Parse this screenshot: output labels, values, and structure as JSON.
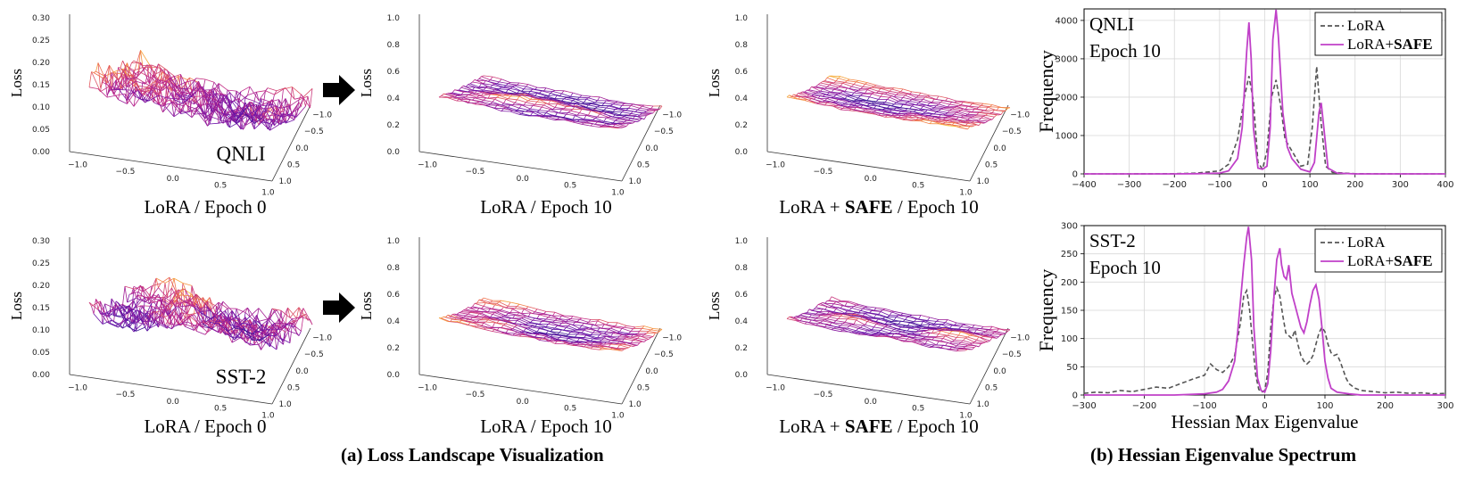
{
  "captions": {
    "left": "(a) Loss Landscape Visualization",
    "right": "(b) Hessian Eigenvalue Spectrum"
  },
  "landscape": {
    "z_label": "Loss",
    "x_ticks": [
      "−1.0",
      "−0.5",
      "0.0",
      "0.5",
      "1.0"
    ],
    "y_ticks": [
      "−1.0",
      "−0.5",
      "0.0",
      "0.5",
      "1.0"
    ],
    "sub_captions": {
      "epoch0": "LoRA / Epoch 0",
      "epoch10": "LoRA / Epoch 10",
      "safe_prefix": "LoRA + ",
      "safe_bold": "SAFE",
      "safe_suffix": " / Epoch 10"
    },
    "panels": [
      {
        "row": 0,
        "col": 0,
        "dataset": "QNLI",
        "z_ticks": [
          "0.00",
          "0.05",
          "0.10",
          "0.15",
          "0.20",
          "0.25",
          "0.30"
        ],
        "zmax": 0.3,
        "seed": 11,
        "amp": 0.55,
        "flat": false
      },
      {
        "row": 0,
        "col": 1,
        "dataset": "",
        "z_ticks": [
          "0.0",
          "0.2",
          "0.4",
          "0.6",
          "0.8",
          "1.0"
        ],
        "zmax": 1.0,
        "seed": 23,
        "amp": 0.14,
        "flat": true
      },
      {
        "row": 0,
        "col": 2,
        "dataset": "",
        "z_ticks": [
          "0.0",
          "0.2",
          "0.4",
          "0.6",
          "0.8",
          "1.0"
        ],
        "zmax": 1.0,
        "seed": 37,
        "amp": 0.12,
        "flat": true
      },
      {
        "row": 1,
        "col": 0,
        "dataset": "SST-2",
        "z_ticks": [
          "0.00",
          "0.05",
          "0.10",
          "0.15",
          "0.20",
          "0.25",
          "0.30"
        ],
        "zmax": 0.3,
        "seed": 51,
        "amp": 0.5,
        "flat": false
      },
      {
        "row": 1,
        "col": 1,
        "dataset": "",
        "z_ticks": [
          "0.0",
          "0.2",
          "0.4",
          "0.6",
          "0.8",
          "1.0"
        ],
        "zmax": 1.0,
        "seed": 67,
        "amp": 0.15,
        "flat": true
      },
      {
        "row": 1,
        "col": 2,
        "dataset": "",
        "z_ticks": [
          "0.0",
          "0.2",
          "0.4",
          "0.6",
          "0.8",
          "1.0"
        ],
        "zmax": 1.0,
        "seed": 79,
        "amp": 0.14,
        "flat": true
      }
    ]
  },
  "chart_data": [
    {
      "type": "line",
      "title": "QNLI Epoch 10",
      "annotation_lines": [
        "QNLI",
        "Epoch 10"
      ],
      "xlabel": "",
      "ylabel": "Frequency",
      "xlim": [
        -400,
        400
      ],
      "ylim": [
        0,
        4300
      ],
      "x_ticks": [
        -400,
        -300,
        -200,
        -100,
        0,
        100,
        200,
        300,
        400
      ],
      "y_ticks": [
        0,
        1000,
        2000,
        3000,
        4000
      ],
      "grid": true,
      "legend_position": "top-right",
      "series": [
        {
          "name": "LoRA",
          "label_plain": "LoRA",
          "style": "dashed",
          "color": "#555555",
          "x": [
            -400,
            -300,
            -200,
            -150,
            -100,
            -80,
            -60,
            -45,
            -35,
            -25,
            -15,
            -5,
            5,
            15,
            25,
            35,
            45,
            60,
            80,
            95,
            105,
            115,
            125,
            135,
            150,
            200,
            300,
            400
          ],
          "y": [
            0,
            0,
            5,
            20,
            80,
            250,
            900,
            2000,
            2550,
            1900,
            300,
            120,
            600,
            2000,
            2450,
            1800,
            900,
            600,
            200,
            250,
            1200,
            2800,
            1300,
            200,
            40,
            5,
            0,
            0
          ]
        },
        {
          "name": "LoRA+SAFE",
          "label_plain": "LoRA+",
          "label_bold": "SAFE",
          "style": "solid",
          "color": "#c040c8",
          "x": [
            -400,
            -300,
            -200,
            -150,
            -100,
            -80,
            -60,
            -50,
            -40,
            -35,
            -30,
            -25,
            -15,
            -5,
            5,
            12,
            18,
            25,
            30,
            40,
            50,
            60,
            80,
            100,
            110,
            120,
            125,
            130,
            140,
            160,
            200,
            300,
            400
          ],
          "y": [
            0,
            0,
            0,
            5,
            20,
            80,
            400,
            1200,
            3200,
            3950,
            3000,
            1200,
            150,
            120,
            200,
            1200,
            3500,
            4280,
            3600,
            1600,
            700,
            400,
            120,
            50,
            300,
            1600,
            1850,
            1300,
            150,
            20,
            0,
            0,
            0
          ]
        }
      ]
    },
    {
      "type": "line",
      "title": "SST-2 Epoch 10",
      "annotation_lines": [
        "SST-2",
        "Epoch 10"
      ],
      "xlabel": "Hessian Max Eigenvalue",
      "ylabel": "Frequency",
      "xlim": [
        -300,
        300
      ],
      "ylim": [
        0,
        300
      ],
      "x_ticks": [
        -300,
        -200,
        -100,
        0,
        100,
        200,
        300
      ],
      "y_ticks": [
        0,
        50,
        100,
        150,
        200,
        250,
        300
      ],
      "grid": true,
      "legend_position": "top-right",
      "series": [
        {
          "name": "LoRA",
          "label_plain": "LoRA",
          "style": "dashed",
          "color": "#555555",
          "x": [
            -300,
            -280,
            -260,
            -240,
            -220,
            -200,
            -180,
            -160,
            -140,
            -120,
            -100,
            -90,
            -80,
            -70,
            -60,
            -50,
            -40,
            -35,
            -30,
            -25,
            -20,
            -15,
            -10,
            -5,
            0,
            5,
            10,
            15,
            20,
            25,
            30,
            35,
            40,
            45,
            50,
            55,
            60,
            65,
            70,
            75,
            80,
            85,
            90,
            95,
            100,
            105,
            110,
            115,
            120,
            125,
            130,
            135,
            140,
            150,
            160,
            180,
            200,
            220,
            240,
            260,
            280,
            300
          ],
          "y": [
            3,
            5,
            4,
            8,
            6,
            10,
            14,
            12,
            20,
            28,
            35,
            55,
            45,
            40,
            50,
            70,
            130,
            175,
            185,
            150,
            90,
            35,
            10,
            5,
            8,
            40,
            120,
            170,
            190,
            175,
            140,
            110,
            105,
            100,
            115,
            90,
            70,
            60,
            55,
            60,
            70,
            90,
            110,
            120,
            112,
            90,
            75,
            70,
            72,
            60,
            45,
            30,
            20,
            12,
            8,
            6,
            4,
            5,
            3,
            4,
            2,
            3
          ]
        },
        {
          "name": "LoRA+SAFE",
          "label_plain": "LoRA+",
          "label_bold": "SAFE",
          "style": "solid",
          "color": "#c040c8",
          "x": [
            -300,
            -200,
            -150,
            -100,
            -80,
            -70,
            -60,
            -50,
            -45,
            -40,
            -35,
            -30,
            -27,
            -22,
            -18,
            -12,
            -6,
            0,
            5,
            10,
            15,
            20,
            25,
            28,
            32,
            36,
            40,
            45,
            50,
            55,
            60,
            65,
            70,
            75,
            80,
            85,
            90,
            95,
            100,
            105,
            110,
            120,
            140,
            160,
            200,
            300
          ],
          "y": [
            0,
            0,
            0,
            2,
            5,
            10,
            25,
            60,
            110,
            170,
            230,
            280,
            298,
            240,
            120,
            30,
            8,
            5,
            20,
            80,
            170,
            240,
            260,
            230,
            210,
            205,
            230,
            180,
            160,
            140,
            120,
            110,
            130,
            160,
            185,
            195,
            170,
            120,
            60,
            30,
            12,
            5,
            2,
            0,
            0,
            0
          ]
        }
      ]
    }
  ]
}
